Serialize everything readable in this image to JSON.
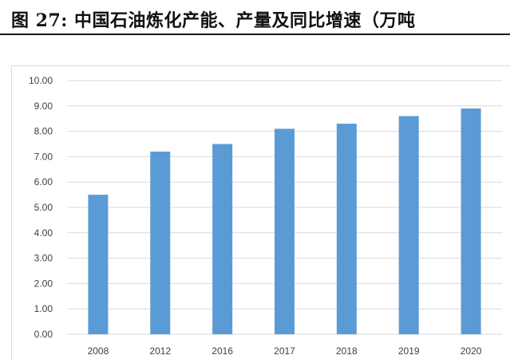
{
  "caption": {
    "text": "图  27: 中国石油炼化产能、产量及同比增速（万吨"
  },
  "chart_data": {
    "type": "bar",
    "title": "",
    "xlabel": "",
    "ylabel": "",
    "categories": [
      "2008",
      "2012",
      "2016",
      "2017",
      "2018",
      "2019",
      "2020"
    ],
    "values": [
      5.5,
      7.2,
      7.5,
      8.1,
      8.3,
      8.6,
      8.9
    ],
    "ylim": [
      0,
      10
    ],
    "yticks": [
      "0.00",
      "1.00",
      "2.00",
      "3.00",
      "4.00",
      "5.00",
      "6.00",
      "7.00",
      "8.00",
      "9.00",
      "10.00"
    ],
    "grid": true,
    "legend": "none",
    "bar_color": "#5b9bd5",
    "grid_color": "#d9d9d9"
  }
}
